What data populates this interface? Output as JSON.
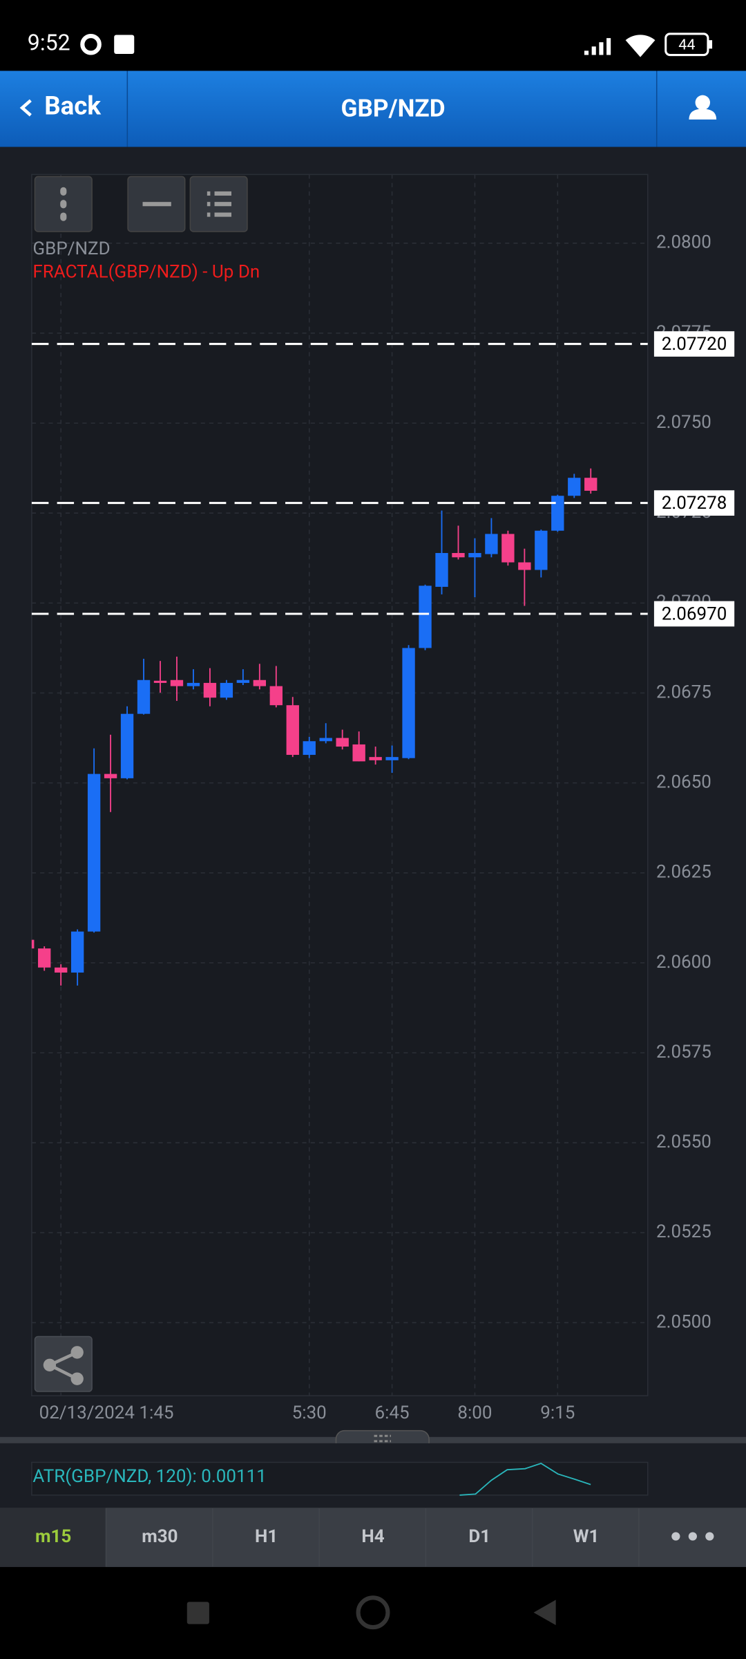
{
  "status_bar": {
    "time": "9:52",
    "battery": "44"
  },
  "header": {
    "back": "Back",
    "title": "GBP/NZD"
  },
  "chart_data": {
    "type": "candlestick",
    "symbol_label": "GBP/NZD",
    "indicator_label": "FRACTAL(GBP/NZD) - Up Dn",
    "up_color": "#1a6ef5",
    "down_color": "#f5408a",
    "categories": [
      null,
      null,
      "02/13/2024 1:45",
      null,
      null,
      null,
      null,
      null,
      null,
      null,
      null,
      null,
      null,
      null,
      null,
      null,
      null,
      "5:30",
      null,
      null,
      null,
      null,
      "6:45",
      null,
      null,
      null,
      null,
      "8:00",
      null,
      null,
      null,
      null,
      "9:15",
      null,
      null
    ],
    "open": [
      2.06064,
      2.0604,
      2.05987,
      2.05973,
      2.06087,
      2.06525,
      2.06513,
      2.06692,
      2.06784,
      2.06786,
      2.06769,
      2.06778,
      2.06737,
      2.06778,
      2.06786,
      2.06769,
      2.06716,
      2.06578,
      2.06616,
      2.06625,
      2.06607,
      2.06572,
      2.06563,
      2.06569,
      2.06875,
      2.07045,
      2.07139,
      2.07127,
      2.07136,
      2.07192,
      2.07113,
      2.07092,
      2.07201,
      2.07298,
      2.07348
    ],
    "high": [
      2.0607,
      2.06046,
      2.05996,
      2.06093,
      2.06596,
      2.06634,
      2.06713,
      2.06845,
      2.06839,
      2.06851,
      2.06816,
      2.06819,
      2.06786,
      2.06816,
      2.06831,
      2.06825,
      2.06739,
      2.06628,
      2.06666,
      2.06648,
      2.06643,
      2.06601,
      2.06604,
      2.06883,
      2.07051,
      2.07257,
      2.07215,
      2.0718,
      2.07236,
      2.07201,
      2.07151,
      2.07204,
      2.07301,
      2.07359,
      2.07374
    ],
    "low": [
      2.06034,
      2.05978,
      2.05937,
      2.05937,
      2.06084,
      2.06419,
      2.0651,
      2.0669,
      2.06751,
      2.06728,
      2.0676,
      2.06713,
      2.06731,
      2.06772,
      2.0676,
      2.0671,
      2.06572,
      2.06569,
      2.0661,
      2.06593,
      2.0656,
      2.06551,
      2.06528,
      2.06566,
      2.06869,
      2.07024,
      2.07121,
      2.07016,
      2.07127,
      2.07104,
      2.06992,
      2.07071,
      2.07198,
      2.07292,
      2.07304
    ],
    "close": [
      2.0604,
      2.05987,
      2.05973,
      2.06087,
      2.06525,
      2.06513,
      2.06692,
      2.06786,
      2.06778,
      2.06769,
      2.06778,
      2.06737,
      2.06778,
      2.06786,
      2.06769,
      2.06716,
      2.06578,
      2.06616,
      2.06625,
      2.06601,
      2.0656,
      2.06563,
      2.06572,
      2.06875,
      2.07048,
      2.07139,
      2.07127,
      2.07139,
      2.07192,
      2.07113,
      2.07092,
      2.07201,
      2.07298,
      2.07348,
      2.07312
    ],
    "ylim": [
      2.04797,
      2.08191
    ],
    "yticks": [
      {
        "value": 2.08,
        "label": "2.0800"
      },
      {
        "value": 2.0775,
        "label": "2.0775"
      },
      {
        "value": 2.075,
        "label": "2.0750"
      },
      {
        "value": 2.0725,
        "label": "2.0725"
      },
      {
        "value": 2.07,
        "label": "2.0700"
      },
      {
        "value": 2.0675,
        "label": "2.0675"
      },
      {
        "value": 2.065,
        "label": "2.0650"
      },
      {
        "value": 2.0625,
        "label": "2.0625"
      },
      {
        "value": 2.06,
        "label": "2.0600"
      },
      {
        "value": 2.0575,
        "label": "2.0575"
      },
      {
        "value": 2.055,
        "label": "2.0550"
      },
      {
        "value": 2.0525,
        "label": "2.0525"
      },
      {
        "value": 2.05,
        "label": "2.0500"
      }
    ],
    "price_lines": [
      {
        "value": 2.0772,
        "label": "2.07720"
      },
      {
        "value": 2.07278,
        "label": "2.07278"
      },
      {
        "value": 2.0697,
        "label": "2.06970"
      }
    ],
    "grid": true
  },
  "indicator": {
    "label": "ATR(GBP/NZD, 120): 0.00111"
  },
  "tabs": [
    "m15",
    "m30",
    "H1",
    "H4",
    "D1",
    "W1"
  ]
}
